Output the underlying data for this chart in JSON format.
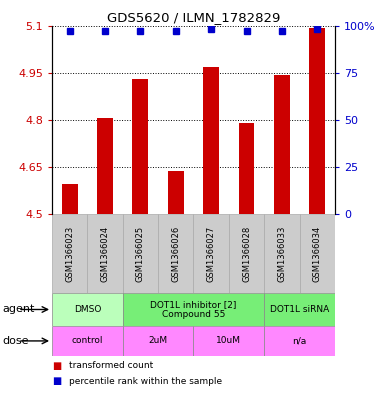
{
  "title": "GDS5620 / ILMN_1782829",
  "samples": [
    "GSM1366023",
    "GSM1366024",
    "GSM1366025",
    "GSM1366026",
    "GSM1366027",
    "GSM1366028",
    "GSM1366033",
    "GSM1366034"
  ],
  "bar_values": [
    4.595,
    4.805,
    4.93,
    4.638,
    4.968,
    4.79,
    4.944,
    5.092
  ],
  "dot_values": [
    97,
    97,
    97,
    97,
    98,
    97,
    97,
    98
  ],
  "bar_bottom": 4.5,
  "ylim_left": [
    4.5,
    5.1
  ],
  "ylim_right": [
    0,
    100
  ],
  "yticks_left": [
    4.5,
    4.65,
    4.8,
    4.95,
    5.1
  ],
  "yticks_right": [
    0,
    25,
    50,
    75,
    100
  ],
  "ytick_labels_left": [
    "4.5",
    "4.65",
    "4.8",
    "4.95",
    "5.1"
  ],
  "ytick_labels_right": [
    "0",
    "25",
    "50",
    "75",
    "100%"
  ],
  "bar_color": "#cc0000",
  "dot_color": "#0000cc",
  "agent_groups": [
    {
      "label": "DMSO",
      "start": 0,
      "end": 2,
      "color": "#bbffbb"
    },
    {
      "label": "DOT1L inhibitor [2]\nCompound 55",
      "start": 2,
      "end": 6,
      "color": "#77ee77"
    },
    {
      "label": "DOT1L siRNA",
      "start": 6,
      "end": 8,
      "color": "#77ee77"
    }
  ],
  "dose_groups": [
    {
      "label": "control",
      "start": 0,
      "end": 2,
      "color": "#ff88ff"
    },
    {
      "label": "2uM",
      "start": 2,
      "end": 4,
      "color": "#ff88ff"
    },
    {
      "label": "10uM",
      "start": 4,
      "end": 6,
      "color": "#ff88ff"
    },
    {
      "label": "n/a",
      "start": 6,
      "end": 8,
      "color": "#ff88ff"
    }
  ],
  "bar_width": 0.45
}
